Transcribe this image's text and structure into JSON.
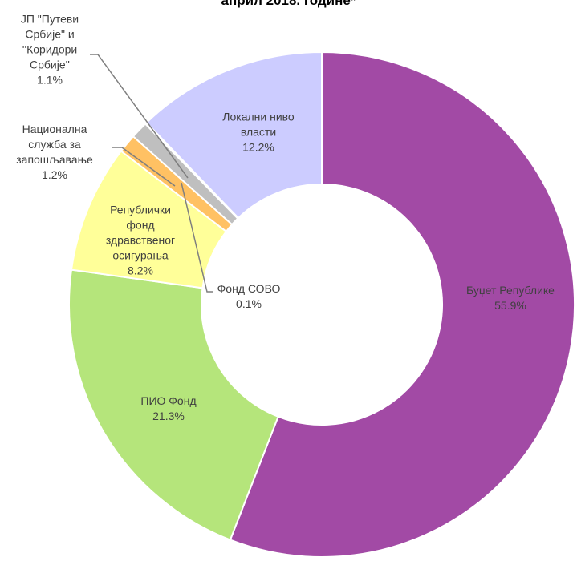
{
  "chart_data": {
    "type": "donut",
    "title": "април 2018. године*",
    "categories": [
      "Буџет Републике",
      "ПИО Фонд",
      "Републички фонд здравственог осигурања",
      "Национална служба за запошљавање",
      "ЈП \"Путеви Србије\" и ''Коридори Србије''",
      "Фонд СОВО",
      "Локални ниво власти"
    ],
    "values": [
      55.9,
      21.3,
      8.2,
      1.2,
      1.1,
      0.1,
      12.2
    ],
    "value_labels": [
      "55.9%",
      "21.3%",
      "8.2%",
      "1.2%",
      "1.1%",
      "0.1%",
      "12.2%"
    ],
    "colors": [
      "#a24aa5",
      "#b5e57b",
      "#ffff99",
      "#ffc163",
      "#bfbfbf",
      "#5b7bc4",
      "#ccccff"
    ]
  }
}
